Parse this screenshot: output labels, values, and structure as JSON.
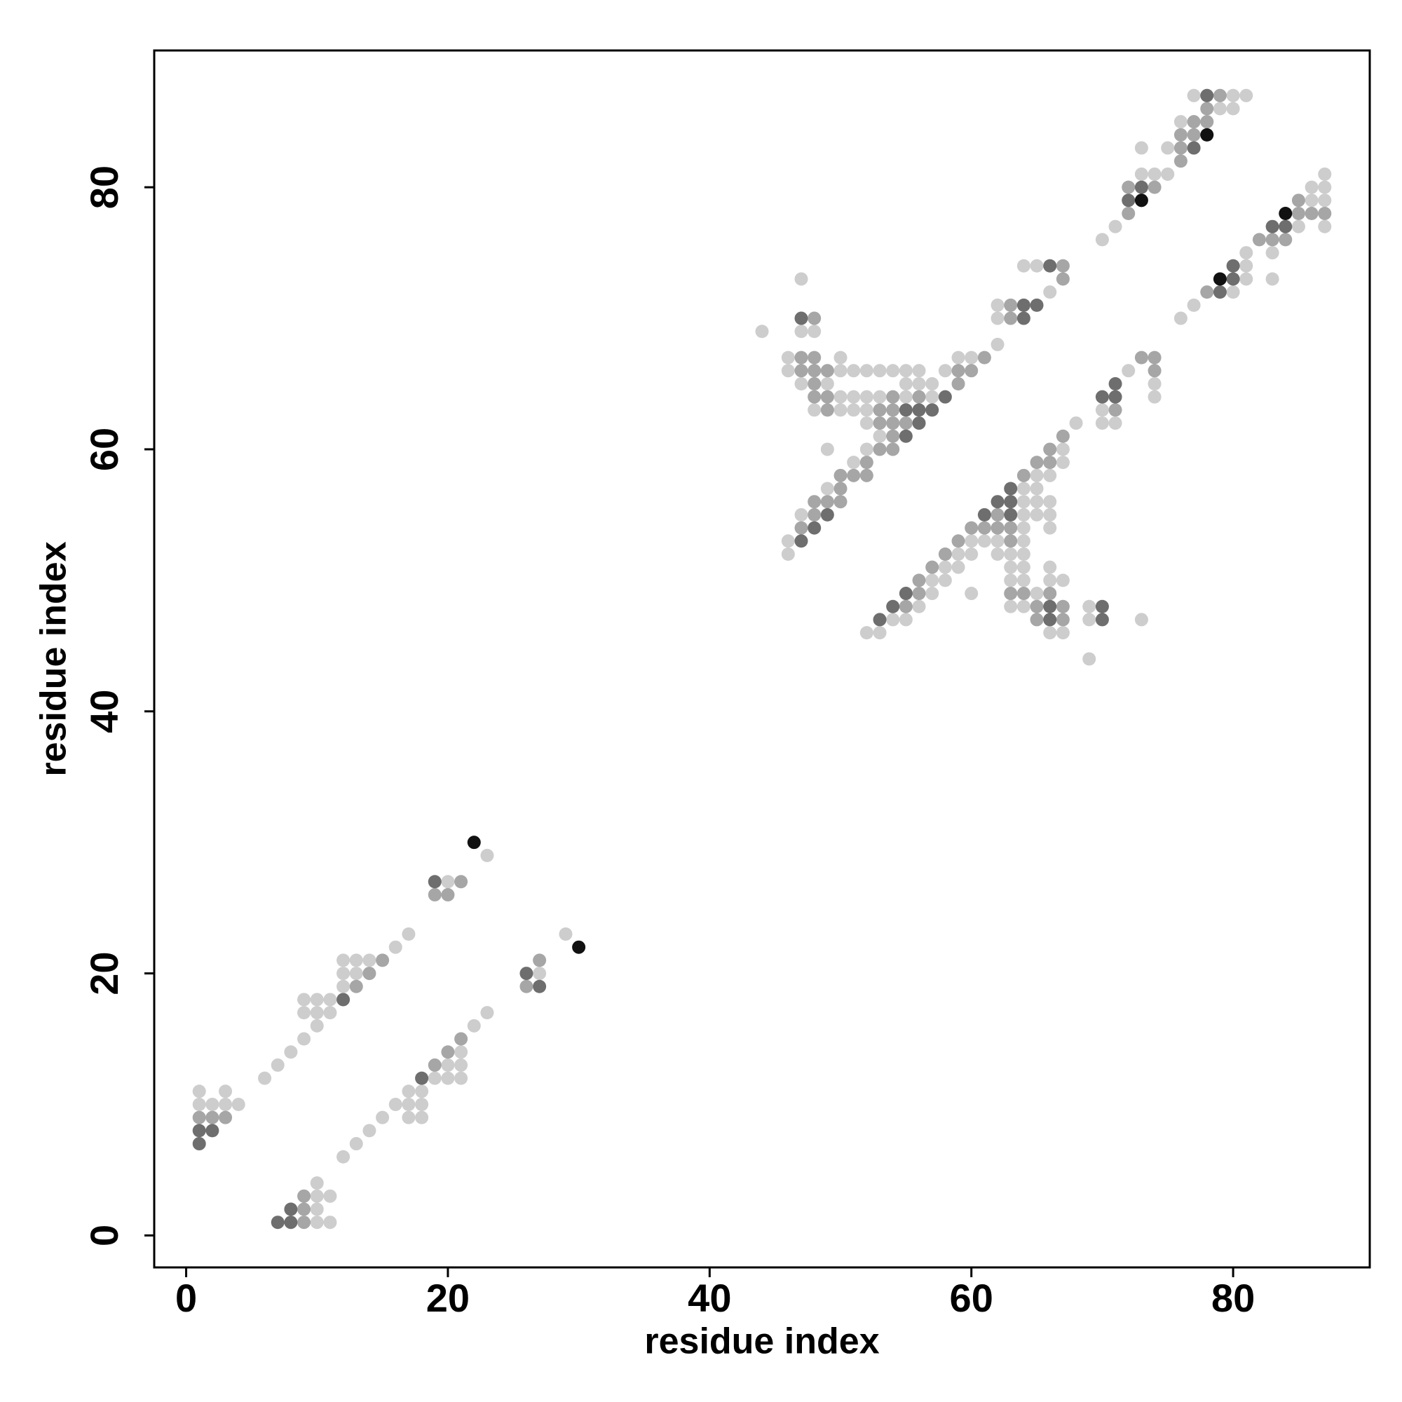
{
  "chart_data": {
    "type": "scatter",
    "xlabel": "residue index",
    "ylabel": "residue index",
    "xlim": [
      -2.44,
      90.44
    ],
    "ylim": [
      -2.44,
      90.44
    ],
    "xticks": [
      0,
      20,
      40,
      60,
      80
    ],
    "yticks": [
      0,
      20,
      40,
      60,
      80
    ],
    "series": [
      {
        "color": "#cdcdcd",
        "x": [
          1,
          2,
          3,
          4,
          1,
          3,
          6,
          7,
          8,
          9,
          10,
          9,
          10,
          11,
          9,
          10,
          11,
          12,
          12,
          13,
          12,
          13,
          14,
          16,
          17,
          20,
          23,
          10,
          11,
          10,
          10,
          11,
          10,
          12,
          13,
          14,
          15,
          16,
          17,
          18,
          17,
          18,
          17,
          18,
          19,
          20,
          21,
          20,
          21,
          21,
          22,
          23,
          27,
          29,
          44,
          47,
          47,
          48,
          46,
          50,
          59,
          60,
          46,
          50,
          51,
          52,
          53,
          54,
          55,
          56,
          58,
          47,
          49,
          55,
          56,
          57,
          50,
          51,
          52,
          53,
          55,
          57,
          48,
          50,
          51,
          52,
          52,
          53,
          49,
          52,
          51,
          49,
          47,
          46,
          46,
          62,
          62,
          62,
          66,
          64,
          65,
          70,
          71,
          73,
          74,
          75,
          73,
          75,
          76,
          79,
          80,
          77,
          80,
          81,
          52,
          53,
          54,
          55,
          56,
          57,
          57,
          58,
          58,
          59,
          59,
          60,
          62,
          63,
          64,
          60,
          61,
          62,
          64,
          64,
          66,
          64,
          65,
          66,
          64,
          65,
          66,
          64,
          65,
          65,
          66,
          67,
          67,
          68,
          60,
          63,
          64,
          66,
          63,
          64,
          66,
          67,
          65,
          63,
          64,
          69,
          69,
          73,
          66,
          67,
          69,
          70,
          71,
          70,
          72,
          74,
          74,
          76,
          77,
          80,
          81,
          81,
          81,
          83,
          83,
          85,
          87,
          86,
          87,
          86,
          87,
          87
        ],
        "y": [
          10,
          10,
          10,
          10,
          11,
          11,
          12,
          13,
          14,
          15,
          16,
          17,
          17,
          17,
          18,
          18,
          18,
          19,
          20,
          20,
          21,
          21,
          21,
          22,
          23,
          27,
          29,
          1,
          1,
          2,
          3,
          3,
          4,
          6,
          7,
          8,
          9,
          10,
          10,
          10,
          9,
          9,
          11,
          11,
          12,
          12,
          12,
          13,
          13,
          14,
          16,
          17,
          20,
          23,
          69,
          73,
          69,
          69,
          67,
          67,
          67,
          67,
          66,
          66,
          66,
          66,
          66,
          66,
          66,
          66,
          66,
          65,
          65,
          65,
          65,
          65,
          64,
          64,
          64,
          64,
          64,
          64,
          63,
          63,
          63,
          63,
          62,
          61,
          60,
          60,
          59,
          57,
          55,
          53,
          52,
          68,
          70,
          71,
          72,
          74,
          74,
          76,
          77,
          81,
          81,
          81,
          83,
          83,
          85,
          86,
          86,
          87,
          87,
          87,
          46,
          46,
          47,
          47,
          48,
          49,
          50,
          50,
          51,
          51,
          52,
          52,
          52,
          52,
          52,
          53,
          53,
          53,
          53,
          54,
          54,
          55,
          55,
          55,
          56,
          56,
          56,
          57,
          57,
          58,
          58,
          59,
          60,
          62,
          49,
          51,
          51,
          51,
          50,
          50,
          50,
          50,
          49,
          48,
          48,
          48,
          47,
          47,
          46,
          46,
          44,
          62,
          62,
          63,
          66,
          65,
          64,
          70,
          71,
          72,
          73,
          74,
          75,
          75,
          73,
          77,
          77,
          79,
          79,
          80,
          80,
          81
        ]
      },
      {
        "color": "#a6a6a6",
        "x": [
          1,
          2,
          3,
          13,
          14,
          15,
          19,
          20,
          21,
          9,
          9,
          9,
          19,
          20,
          21,
          26,
          27,
          48,
          47,
          48,
          61,
          47,
          48,
          49,
          59,
          60,
          48,
          59,
          48,
          49,
          54,
          56,
          49,
          53,
          54,
          53,
          54,
          55,
          54,
          53,
          54,
          52,
          50,
          51,
          52,
          50,
          48,
          49,
          50,
          48,
          47,
          63,
          63,
          67,
          67,
          72,
          72,
          74,
          76,
          76,
          76,
          77,
          77,
          78,
          78,
          79,
          55,
          56,
          56,
          57,
          58,
          59,
          63,
          60,
          61,
          62,
          63,
          62,
          64,
          65,
          66,
          66,
          67,
          63,
          64,
          66,
          65,
          67,
          65,
          67,
          71,
          73,
          74,
          74,
          78,
          82,
          83,
          84,
          85,
          86,
          87,
          85
        ],
        "y": [
          9,
          9,
          9,
          19,
          20,
          21,
          26,
          26,
          27,
          1,
          2,
          3,
          13,
          14,
          15,
          19,
          21,
          70,
          67,
          67,
          67,
          66,
          66,
          66,
          66,
          66,
          65,
          65,
          64,
          64,
          64,
          64,
          63,
          63,
          63,
          62,
          62,
          62,
          61,
          60,
          60,
          59,
          58,
          58,
          58,
          57,
          56,
          56,
          56,
          55,
          54,
          70,
          71,
          73,
          74,
          78,
          80,
          80,
          82,
          83,
          84,
          84,
          85,
          85,
          86,
          87,
          48,
          49,
          50,
          51,
          52,
          53,
          53,
          54,
          54,
          54,
          54,
          55,
          58,
          59,
          59,
          60,
          61,
          49,
          49,
          49,
          48,
          48,
          47,
          47,
          63,
          67,
          67,
          66,
          72,
          76,
          76,
          76,
          78,
          78,
          78,
          79
        ]
      },
      {
        "color": "#6e6e6e",
        "x": [
          1,
          1,
          2,
          12,
          19,
          7,
          8,
          8,
          18,
          27,
          26,
          47,
          58,
          55,
          56,
          57,
          56,
          55,
          49,
          48,
          47,
          64,
          64,
          65,
          66,
          72,
          73,
          77,
          78,
          53,
          54,
          55,
          61,
          63,
          62,
          63,
          63,
          66,
          70,
          66,
          70,
          70,
          71,
          71,
          79,
          80,
          80,
          83,
          84
        ],
        "y": [
          7,
          8,
          8,
          18,
          27,
          1,
          1,
          2,
          12,
          19,
          20,
          70,
          64,
          63,
          63,
          63,
          62,
          61,
          55,
          54,
          53,
          70,
          71,
          71,
          74,
          79,
          80,
          83,
          87,
          47,
          48,
          49,
          55,
          55,
          56,
          56,
          57,
          48,
          48,
          47,
          47,
          64,
          64,
          65,
          72,
          73,
          74,
          77,
          77
        ]
      },
      {
        "color": "#111111",
        "x": [
          22,
          30,
          73,
          78,
          79,
          84
        ],
        "y": [
          30,
          22,
          79,
          84,
          73,
          78
        ]
      }
    ]
  }
}
